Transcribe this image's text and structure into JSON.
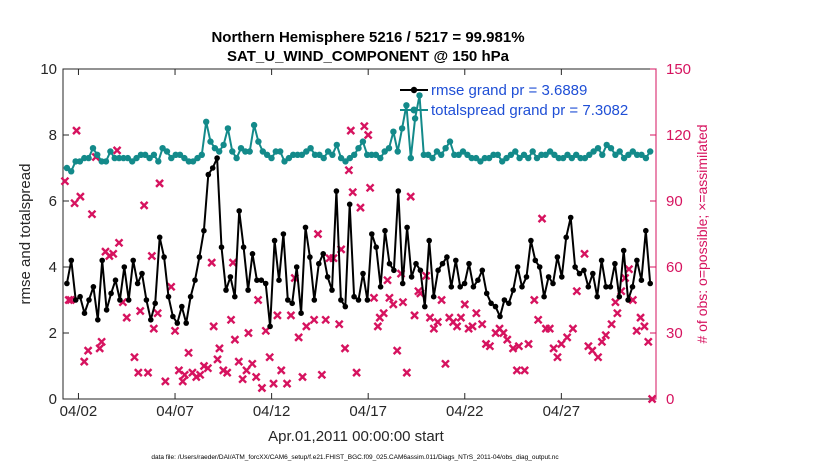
{
  "chart_data": {
    "type": "line",
    "title_line1": "Northern Hemisphere 5216 / 5217 = 99.981%",
    "title_line2": "SAT_U_WIND_COMPONENT @ 150 hPa",
    "xlabel": "Apr.01,2011 00:00:00 start",
    "ylabel_left": "rmse and totalspread",
    "ylabel_right": "# of obs: o=possible; ×=assimilated",
    "footer": "data file: /Users/raeder/DAI/ATM_forcXX/CAM6_setup/f.e21.FHIST_BGC.f09_025.CAM6assim.011/Diags_NTrS_2011-04/obs_diag_output.nc",
    "xlim": [
      1.2,
      31.9
    ],
    "ylim_left": [
      0,
      10
    ],
    "ylim_right": [
      0,
      150
    ],
    "x_ticks": [
      2,
      7,
      12,
      17,
      22,
      27
    ],
    "x_tick_labels": [
      "04/02",
      "04/07",
      "04/12",
      "04/17",
      "04/22",
      "04/27"
    ],
    "y_ticks_left": [
      0,
      2,
      4,
      6,
      8,
      10
    ],
    "y_tick_labels_left": [
      "0",
      "2",
      "4",
      "6",
      "8",
      "10"
    ],
    "y_ticks_right": [
      0,
      30,
      60,
      90,
      120,
      150
    ],
    "y_tick_labels_right": [
      "0",
      "30",
      "60",
      "90",
      "120",
      "150"
    ],
    "colors": {
      "rmse": "#000000",
      "spread": "#138a8a",
      "obs": "#d6135f",
      "legend_text": "#1f4fd6"
    },
    "legend": [
      {
        "label": "rmse grand pr = 3.6889"
      },
      {
        "label": "totalspread grand pr = 7.3082"
      }
    ],
    "series": [
      {
        "name": "rmse",
        "values": [
          3.5,
          4.2,
          3.0,
          3.1,
          2.6,
          3.0,
          3.4,
          2.4,
          4.2,
          2.7,
          3.2,
          3.6,
          3.0,
          4.0,
          3.0,
          4.2,
          3.5,
          3.8,
          3.0,
          2.4,
          2.9,
          4.9,
          4.3,
          3.1,
          2.5,
          2.3,
          2.8,
          2.3,
          3.1,
          3.6,
          4.3,
          5.1,
          6.8,
          7.0,
          7.3,
          4.6,
          3.3,
          3.7,
          3.1,
          5.7,
          4.6,
          3.3,
          4.4,
          3.6,
          3.6,
          3.5,
          2.2,
          4.8,
          3.6,
          5.0,
          3.0,
          2.9,
          4.0,
          2.6,
          5.2,
          4.3,
          3.0,
          4.1,
          4.4,
          3.7,
          3.3,
          6.3,
          3.0,
          2.8,
          5.9,
          3.1,
          3.0,
          3.8,
          3.0,
          5.0,
          4.6,
          3.4,
          5.1,
          4.1,
          3.9,
          6.3,
          3.5,
          5.2,
          3.7,
          4.1,
          3.9,
          2.8,
          4.8,
          3.1,
          3.9,
          4.1,
          4.3,
          3.4,
          4.2,
          3.4,
          3.5,
          4.1,
          3.4,
          3.6,
          3.9,
          3.2,
          2.9,
          2.8,
          2.5,
          3.0,
          2.9,
          3.3,
          4.0,
          3.4,
          3.7,
          4.8,
          4.2,
          4.0,
          3.1,
          3.7,
          3.5,
          4.3,
          3.7,
          4.9,
          5.5,
          4.0,
          3.8,
          3.9,
          3.4,
          3.8,
          3.1,
          4.2,
          3.4,
          3.4,
          4.1,
          3.1,
          4.5,
          3.0,
          3.4,
          4.2,
          3.6,
          5.1,
          3.5
        ]
      },
      {
        "name": "totalspread",
        "values": [
          7.0,
          6.9,
          7.2,
          7.2,
          7.3,
          7.3,
          7.6,
          7.4,
          7.2,
          7.2,
          7.5,
          7.3,
          7.3,
          7.3,
          7.3,
          7.2,
          7.3,
          7.4,
          7.4,
          7.3,
          7.4,
          7.2,
          7.6,
          7.5,
          7.3,
          7.4,
          7.4,
          7.3,
          7.2,
          7.2,
          7.3,
          7.4,
          8.4,
          7.8,
          7.6,
          7.5,
          7.7,
          8.2,
          7.5,
          7.3,
          7.6,
          7.5,
          7.5,
          8.3,
          7.8,
          7.5,
          7.4,
          7.3,
          7.5,
          7.5,
          7.2,
          7.3,
          7.4,
          7.4,
          7.4,
          7.5,
          7.6,
          7.4,
          7.4,
          7.3,
          7.5,
          7.4,
          7.7,
          7.3,
          7.2,
          7.3,
          7.4,
          7.6,
          7.8,
          7.4,
          7.4,
          7.4,
          7.3,
          7.5,
          7.6,
          8.1,
          7.5,
          8.2,
          8.9,
          7.3,
          8.5,
          9.2,
          7.4,
          7.4,
          7.3,
          7.5,
          7.4,
          7.6,
          7.8,
          7.4,
          7.4,
          7.5,
          7.4,
          7.3,
          7.3,
          7.2,
          7.3,
          7.3,
          7.4,
          7.4,
          7.2,
          7.3,
          7.4,
          7.5,
          7.3,
          7.4,
          7.3,
          7.5,
          7.3,
          7.4,
          7.4,
          7.5,
          7.4,
          7.3,
          7.3,
          7.4,
          7.3,
          7.4,
          7.3,
          7.3,
          7.4,
          7.5,
          7.6,
          7.4,
          7.7,
          7.6,
          7.4,
          7.5,
          7.3,
          7.4,
          7.5,
          7.4,
          7.4,
          7.3,
          7.5
        ]
      },
      {
        "name": "obs_assimilated",
        "points": [
          [
            1.3,
            99
          ],
          [
            1.5,
            45
          ],
          [
            1.6,
            45
          ],
          [
            1.8,
            89
          ],
          [
            1.9,
            122
          ],
          [
            2.1,
            92
          ],
          [
            2.3,
            17
          ],
          [
            2.5,
            22
          ],
          [
            2.7,
            84
          ],
          [
            2.9,
            110
          ],
          [
            3.1,
            23
          ],
          [
            3.2,
            26
          ],
          [
            3.4,
            67
          ],
          [
            3.6,
            65
          ],
          [
            3.8,
            66
          ],
          [
            4.0,
            113
          ],
          [
            4.1,
            71
          ],
          [
            4.3,
            44
          ],
          [
            4.5,
            37
          ],
          [
            4.9,
            19
          ],
          [
            5.1,
            12
          ],
          [
            5.2,
            40
          ],
          [
            5.4,
            88
          ],
          [
            5.6,
            12
          ],
          [
            5.8,
            65
          ],
          [
            5.9,
            32
          ],
          [
            6.1,
            39
          ],
          [
            6.2,
            98
          ],
          [
            6.5,
            8
          ],
          [
            6.8,
            51
          ],
          [
            7.0,
            31
          ],
          [
            7.2,
            13
          ],
          [
            7.4,
            8
          ],
          [
            7.5,
            11
          ],
          [
            7.7,
            21
          ],
          [
            7.9,
            12
          ],
          [
            8.1,
            10
          ],
          [
            8.3,
            11
          ],
          [
            8.5,
            15
          ],
          [
            8.7,
            14
          ],
          [
            8.9,
            62
          ],
          [
            9.0,
            33
          ],
          [
            9.2,
            18
          ],
          [
            9.3,
            23
          ],
          [
            9.5,
            13
          ],
          [
            9.7,
            12
          ],
          [
            9.9,
            36
          ],
          [
            10.0,
            62
          ],
          [
            10.1,
            27
          ],
          [
            10.3,
            17
          ],
          [
            10.5,
            9
          ],
          [
            10.7,
            13
          ],
          [
            10.8,
            30
          ],
          [
            11.0,
            16
          ],
          [
            11.2,
            10
          ],
          [
            11.3,
            45
          ],
          [
            11.5,
            5
          ],
          [
            11.7,
            31
          ],
          [
            11.9,
            19
          ],
          [
            12.1,
            7
          ],
          [
            12.3,
            38
          ],
          [
            12.5,
            13
          ],
          [
            12.8,
            7
          ],
          [
            13.0,
            38
          ],
          [
            13.2,
            55
          ],
          [
            13.4,
            28
          ],
          [
            13.6,
            10
          ],
          [
            13.8,
            33
          ],
          [
            14.2,
            36
          ],
          [
            14.4,
            75
          ],
          [
            14.6,
            11
          ],
          [
            14.8,
            36
          ],
          [
            15.0,
            64
          ],
          [
            15.2,
            64
          ],
          [
            15.5,
            34
          ],
          [
            15.6,
            68
          ],
          [
            15.8,
            23
          ],
          [
            16.0,
            104
          ],
          [
            16.1,
            122
          ],
          [
            16.2,
            94
          ],
          [
            16.4,
            12
          ],
          [
            16.6,
            87
          ],
          [
            16.8,
            124
          ],
          [
            17.0,
            120
          ],
          [
            17.1,
            96
          ],
          [
            17.3,
            46
          ],
          [
            17.5,
            33
          ],
          [
            17.6,
            37
          ],
          [
            17.8,
            39
          ],
          [
            18.0,
            54
          ],
          [
            18.1,
            46
          ],
          [
            18.3,
            43
          ],
          [
            18.5,
            22
          ],
          [
            18.7,
            57
          ],
          [
            18.8,
            44
          ],
          [
            19.0,
            12
          ],
          [
            19.2,
            92
          ],
          [
            19.4,
            38
          ],
          [
            19.6,
            49
          ],
          [
            19.7,
            48
          ],
          [
            20.0,
            56
          ],
          [
            20.2,
            37
          ],
          [
            20.4,
            32
          ],
          [
            20.6,
            35
          ],
          [
            20.8,
            45
          ],
          [
            21.0,
            16
          ],
          [
            21.2,
            37
          ],
          [
            21.4,
            35
          ],
          [
            21.6,
            33
          ],
          [
            21.8,
            37
          ],
          [
            22.0,
            43
          ],
          [
            22.2,
            32
          ],
          [
            22.4,
            33
          ],
          [
            22.6,
            39
          ],
          [
            22.9,
            34
          ],
          [
            23.1,
            25
          ],
          [
            23.3,
            24
          ],
          [
            23.6,
            30
          ],
          [
            23.8,
            32
          ],
          [
            24.0,
            30
          ],
          [
            24.2,
            27
          ],
          [
            24.5,
            23
          ],
          [
            24.7,
            13
          ],
          [
            24.8,
            24
          ],
          [
            25.1,
            13
          ],
          [
            25.3,
            25
          ],
          [
            25.6,
            45
          ],
          [
            25.8,
            36
          ],
          [
            26.0,
            82
          ],
          [
            26.2,
            32
          ],
          [
            26.4,
            32
          ],
          [
            26.6,
            23
          ],
          [
            26.8,
            19
          ],
          [
            27.0,
            25
          ],
          [
            27.3,
            28
          ],
          [
            27.6,
            32
          ],
          [
            27.8,
            49
          ],
          [
            28.2,
            66
          ],
          [
            28.4,
            24
          ],
          [
            28.6,
            22
          ],
          [
            28.9,
            19
          ],
          [
            29.1,
            26
          ],
          [
            29.3,
            29
          ],
          [
            29.6,
            34
          ],
          [
            29.8,
            44
          ],
          [
            29.9,
            39
          ],
          [
            30.1,
            49
          ],
          [
            30.3,
            55
          ],
          [
            30.5,
            59
          ],
          [
            30.7,
            45
          ],
          [
            30.9,
            31
          ],
          [
            31.1,
            37
          ],
          [
            31.3,
            33
          ],
          [
            31.5,
            26
          ],
          [
            31.7,
            0
          ]
        ]
      }
    ]
  }
}
